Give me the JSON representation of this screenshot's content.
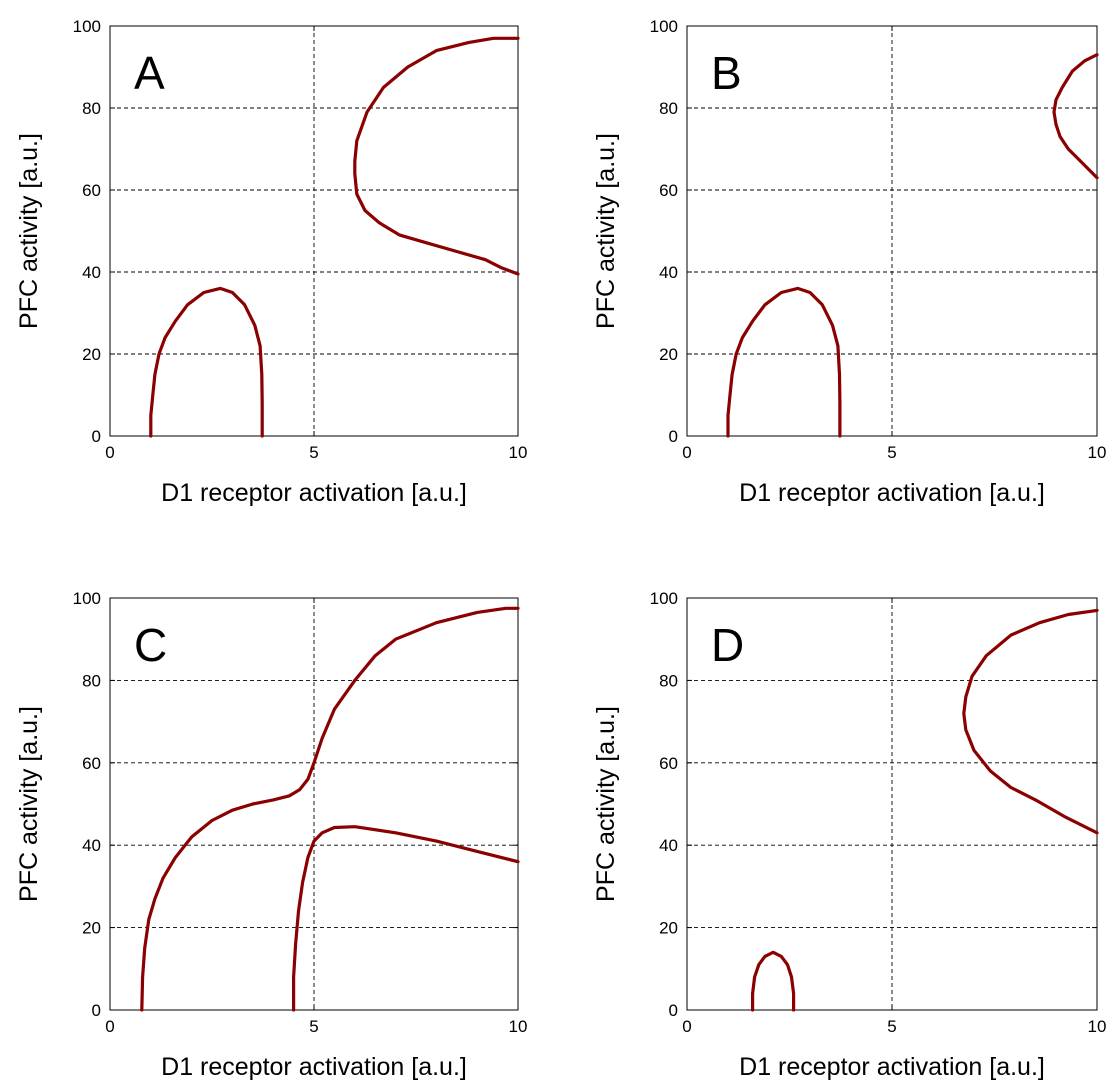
{
  "colors": {
    "curve": "#8b0000",
    "axis": "#000000"
  },
  "chart_data": [
    {
      "type": "line",
      "panel_label": "A",
      "xlabel": "D1 receptor activation [a.u.]",
      "ylabel": "PFC activity [a.u.]",
      "xlim": [
        0,
        10
      ],
      "ylim": [
        0,
        100
      ],
      "xticks": [
        0,
        5,
        10
      ],
      "yticks": [
        0,
        20,
        40,
        60,
        80,
        100
      ],
      "grid": true,
      "series": [
        {
          "x": [
            1.0,
            1.0,
            1.05,
            1.1,
            1.2,
            1.35,
            1.6,
            1.9,
            2.3,
            2.7,
            3.0,
            3.3,
            3.55,
            3.68,
            3.72,
            3.73,
            3.73
          ],
          "y": [
            0,
            5,
            10,
            15,
            20,
            24,
            28,
            32,
            35,
            36,
            35,
            32,
            27,
            22,
            15,
            8,
            0
          ]
        },
        {
          "x": [
            10.0,
            9.4,
            8.8,
            8.0,
            7.3,
            6.7,
            6.3,
            6.05,
            6.0,
            6.0,
            6.05,
            6.25,
            6.6,
            7.1,
            7.8,
            8.5,
            9.2,
            9.6,
            10.0
          ],
          "y": [
            97,
            97,
            96,
            94,
            90,
            85,
            79,
            72,
            67,
            64,
            59,
            55,
            52,
            49,
            47,
            45,
            43,
            41,
            39.5
          ]
        }
      ]
    },
    {
      "type": "line",
      "panel_label": "B",
      "xlabel": "D1 receptor activation [a.u.]",
      "ylabel": "PFC activity [a.u.]",
      "xlim": [
        0,
        10
      ],
      "ylim": [
        0,
        100
      ],
      "xticks": [
        0,
        5,
        10
      ],
      "yticks": [
        0,
        20,
        40,
        60,
        80,
        100
      ],
      "grid": true,
      "series": [
        {
          "x": [
            1.0,
            1.0,
            1.05,
            1.1,
            1.2,
            1.35,
            1.6,
            1.9,
            2.3,
            2.7,
            3.0,
            3.3,
            3.55,
            3.68,
            3.72,
            3.73,
            3.73
          ],
          "y": [
            0,
            5,
            10,
            15,
            20,
            24,
            28,
            32,
            35,
            36,
            35,
            32,
            27,
            22,
            15,
            8,
            0
          ]
        },
        {
          "x": [
            10.0,
            9.7,
            9.4,
            9.15,
            9.0,
            8.95,
            9.0,
            9.1,
            9.3,
            9.6,
            10.0
          ],
          "y": [
            93,
            91.5,
            89,
            85,
            82,
            79,
            76,
            73,
            70,
            67,
            63
          ]
        }
      ]
    },
    {
      "type": "line",
      "panel_label": "C",
      "xlabel": "D1 receptor activation [a.u.]",
      "ylabel": "PFC activity [a.u.]",
      "xlim": [
        0,
        10
      ],
      "ylim": [
        0,
        100
      ],
      "xticks": [
        0,
        5,
        10
      ],
      "yticks": [
        0,
        20,
        40,
        60,
        80,
        100
      ],
      "grid": true,
      "series": [
        {
          "x": [
            0.78,
            0.8,
            0.85,
            0.95,
            1.1,
            1.3,
            1.6,
            2.0,
            2.5,
            3.0,
            3.5,
            4.0,
            4.4,
            4.65,
            4.85,
            5.0,
            5.2,
            5.5,
            6.0,
            6.5,
            7.0,
            8.0,
            9.0,
            9.7,
            10.0
          ],
          "y": [
            0,
            8,
            15,
            22,
            27,
            32,
            37,
            42,
            46,
            48.5,
            50,
            51,
            52,
            53.5,
            56,
            60,
            66,
            73,
            80,
            86,
            90,
            94,
            96.5,
            97.5,
            97.5
          ]
        },
        {
          "x": [
            4.5,
            4.5,
            4.55,
            4.62,
            4.72,
            4.85,
            5.0,
            5.2,
            5.5,
            6.0,
            7.0,
            8.0,
            9.0,
            10.0
          ],
          "y": [
            0,
            8,
            16,
            24,
            31,
            37,
            41,
            43,
            44.3,
            44.5,
            43,
            41,
            38.5,
            36
          ]
        }
      ]
    },
    {
      "type": "line",
      "panel_label": "D",
      "xlabel": "D1 receptor activation [a.u.]",
      "ylabel": "PFC activity [a.u.]",
      "xlim": [
        0,
        10
      ],
      "ylim": [
        0,
        100
      ],
      "xticks": [
        0,
        5,
        10
      ],
      "yticks": [
        0,
        20,
        40,
        60,
        80,
        100
      ],
      "grid": true,
      "series": [
        {
          "x": [
            1.6,
            1.6,
            1.65,
            1.75,
            1.9,
            2.1,
            2.3,
            2.45,
            2.55,
            2.6,
            2.6
          ],
          "y": [
            0,
            4,
            8,
            11,
            13,
            14,
            13,
            11,
            8,
            4,
            0
          ]
        },
        {
          "x": [
            10.0,
            9.3,
            8.6,
            7.9,
            7.3,
            6.95,
            6.8,
            6.75,
            6.8,
            7.0,
            7.4,
            7.9,
            8.5,
            9.2,
            10.0
          ],
          "y": [
            97,
            96,
            94,
            91,
            86,
            81,
            76,
            72,
            68,
            63,
            58,
            54,
            51,
            47,
            43
          ]
        }
      ]
    }
  ]
}
